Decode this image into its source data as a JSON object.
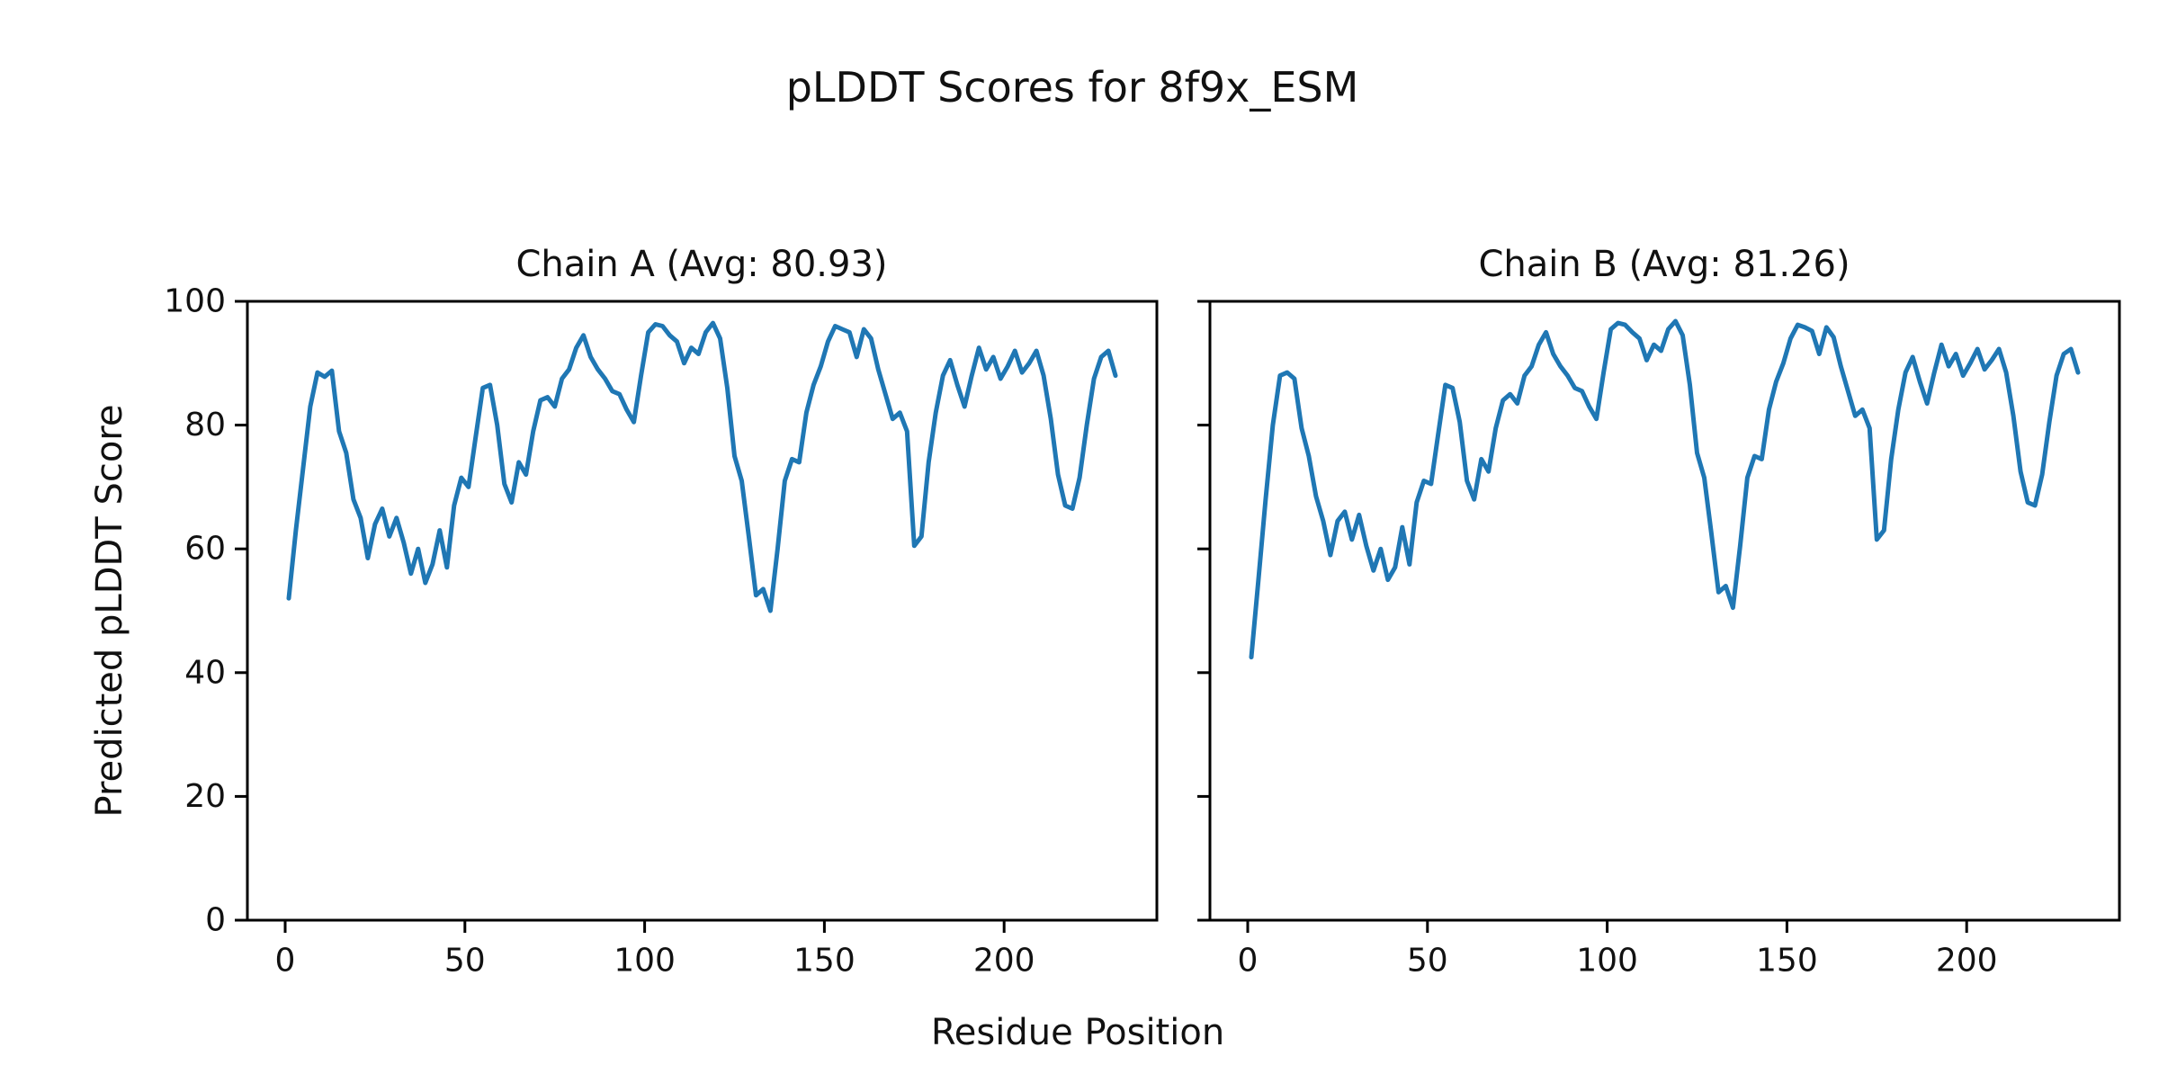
{
  "figure": {
    "title": "pLDDT Scores for 8f9x_ESM",
    "xlabel": "Residue Position",
    "ylabel": "Predicted pLDDT Score",
    "background": "#ffffff",
    "line_color": "#1f77b4",
    "text_color": "#111111"
  },
  "chart_data": [
    {
      "type": "line",
      "title": "Chain A (Avg: 80.93)",
      "chain": "A",
      "avg": 80.93,
      "x_start": 1,
      "x_step": 2,
      "xlim": [
        -10.5,
        242.5
      ],
      "ylim": [
        0,
        100
      ],
      "xticks": [
        0,
        50,
        100,
        150,
        200
      ],
      "yticks": [
        0,
        20,
        40,
        60,
        80,
        100
      ],
      "y_tick_labels_visible": true,
      "grid": false,
      "legend": "none",
      "values": [
        52,
        63,
        73,
        83,
        88.5,
        87.8,
        88.8,
        79,
        75.5,
        68,
        65,
        58.5,
        64,
        66.5,
        62,
        65,
        61,
        56,
        60,
        54.5,
        57.5,
        63,
        57,
        67,
        71.5,
        70,
        78,
        86,
        86.5,
        80,
        70.5,
        67.5,
        74,
        72,
        79,
        84,
        84.5,
        83,
        87.5,
        89,
        92.5,
        94.5,
        91,
        89,
        87.5,
        85.5,
        85,
        82.5,
        80.5,
        88,
        95,
        96.3,
        96,
        94.5,
        93.5,
        90,
        92.5,
        91.5,
        95,
        96.5,
        94,
        86,
        75,
        71,
        62,
        52.5,
        53.5,
        50,
        60,
        71,
        74.5,
        74,
        82,
        86.5,
        89.5,
        93.5,
        96,
        95.5,
        95,
        91,
        95.5,
        94,
        89,
        85,
        81,
        82,
        79,
        60.5,
        62,
        74,
        82,
        88,
        90.5,
        86.5,
        83,
        88,
        92.5,
        89,
        91,
        87.5,
        89.5,
        92,
        88.5,
        90,
        92,
        88,
        81,
        72,
        67,
        66.5,
        71.5,
        80,
        87.5,
        91,
        92,
        88
      ]
    },
    {
      "type": "line",
      "title": "Chain B (Avg: 81.26)",
      "chain": "B",
      "avg": 81.26,
      "x_start": 1,
      "x_step": 2,
      "xlim": [
        -10.5,
        242.5
      ],
      "ylim": [
        0,
        100
      ],
      "xticks": [
        0,
        50,
        100,
        150,
        200
      ],
      "yticks": [
        0,
        20,
        40,
        60,
        80,
        100
      ],
      "y_tick_labels_visible": false,
      "grid": false,
      "legend": "none",
      "values": [
        42.5,
        55,
        68,
        80,
        88,
        88.5,
        87.5,
        79.5,
        75,
        68.5,
        64.5,
        59,
        64.5,
        66,
        61.5,
        65.5,
        60.5,
        56.5,
        60,
        55,
        57,
        63.5,
        57.5,
        67.5,
        71,
        70.5,
        78.5,
        86.5,
        86,
        80.5,
        71,
        68,
        74.5,
        72.5,
        79.5,
        84,
        85,
        83.5,
        88,
        89.5,
        93,
        95,
        91.5,
        89.5,
        88,
        86,
        85.5,
        83,
        81,
        88.5,
        95.5,
        96.5,
        96.2,
        95,
        94,
        90.5,
        93,
        92,
        95.5,
        96.8,
        94.5,
        86.5,
        75.5,
        71.5,
        62.5,
        53,
        54,
        50.5,
        60.5,
        71.5,
        75,
        74.5,
        82.5,
        87,
        90,
        94,
        96.2,
        95.8,
        95.2,
        91.5,
        95.8,
        94.2,
        89.5,
        85.5,
        81.5,
        82.5,
        79.5,
        61.5,
        63,
        74.5,
        82.5,
        88.5,
        91,
        87,
        83.5,
        88.5,
        93,
        89.5,
        91.5,
        88,
        90,
        92.3,
        89,
        90.5,
        92.3,
        88.5,
        81.5,
        72.5,
        67.5,
        67,
        72,
        80.5,
        88,
        91.5,
        92.3,
        88.5
      ]
    }
  ]
}
